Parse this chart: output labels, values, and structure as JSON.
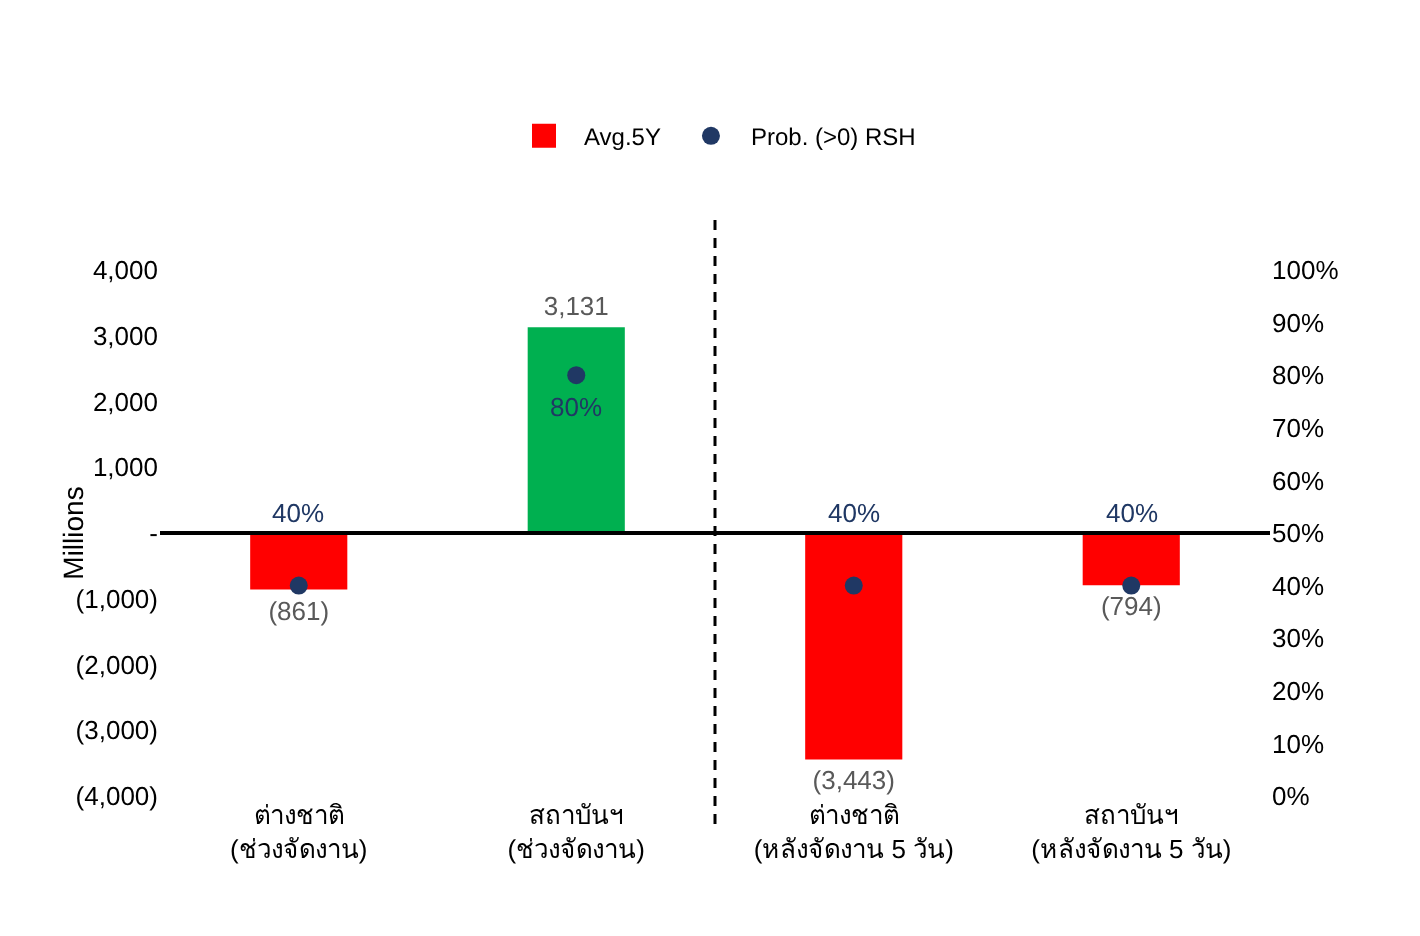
{
  "chart_data": {
    "type": "bar",
    "ylabel": "Millions",
    "categories": [
      "ต่างชาติ\n(ช่วงจัดงาน)",
      "สถาบันฯ\n(ช่วงจัดงาน)",
      "ต่างชาติ\n(หลังจัดงาน 5 วัน)",
      "สถาบันฯ\n(หลังจัดงาน 5 วัน)"
    ],
    "series": [
      {
        "name": "Avg.5Y",
        "colors": [
          "#ff0000",
          "#00b050",
          "#ff0000",
          "#ff0000"
        ],
        "values": [
          -861,
          3131,
          -3443,
          -794
        ],
        "value_labels": [
          "(861)",
          "3,131",
          "(3,443)",
          "(794)"
        ]
      },
      {
        "name": "Prob. (>0) RSH",
        "type": "scatter",
        "axis": "y2",
        "color": "#203864",
        "marker": "circle",
        "values": [
          40,
          80,
          40,
          40
        ],
        "value_labels": [
          "40%",
          "80%",
          "40%",
          "40%"
        ]
      }
    ],
    "ylim": [
      -4000,
      4000
    ],
    "yticks": [
      {
        "value": -4000,
        "label": "(4,000)"
      },
      {
        "value": -3000,
        "label": "(3,000)"
      },
      {
        "value": -2000,
        "label": "(2,000)"
      },
      {
        "value": -1000,
        "label": "(1,000)"
      },
      {
        "value": 0,
        "label": "-"
      },
      {
        "value": 1000,
        "label": "1,000"
      },
      {
        "value": 2000,
        "label": "2,000"
      },
      {
        "value": 3000,
        "label": "3,000"
      },
      {
        "value": 4000,
        "label": "4,000"
      }
    ],
    "y2lim": [
      0,
      100
    ],
    "y2ticks": [
      {
        "value": 0,
        "label": "0%"
      },
      {
        "value": 10,
        "label": "10%"
      },
      {
        "value": 20,
        "label": "20%"
      },
      {
        "value": 30,
        "label": "30%"
      },
      {
        "value": 40,
        "label": "40%"
      },
      {
        "value": 50,
        "label": "50%"
      },
      {
        "value": 60,
        "label": "60%"
      },
      {
        "value": 70,
        "label": "70%"
      },
      {
        "value": 80,
        "label": "80%"
      },
      {
        "value": 90,
        "label": "90%"
      },
      {
        "value": 100,
        "label": "100%"
      }
    ],
    "legend": "top"
  }
}
